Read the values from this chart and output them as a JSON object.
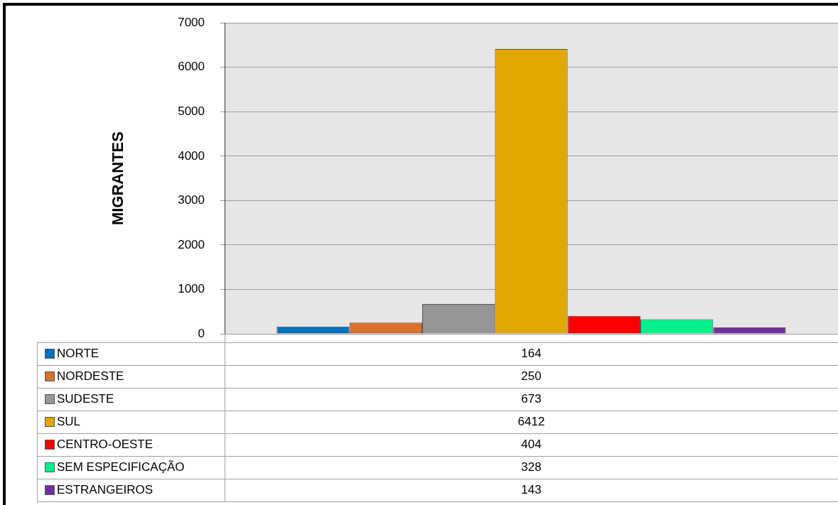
{
  "chart_data": {
    "type": "bar",
    "ylabel": "MIGRANTES",
    "categories": [
      null
    ],
    "series": [
      {
        "name": "NORTE",
        "color": "#0070c0",
        "values": [
          164
        ]
      },
      {
        "name": "NORDESTE",
        "color": "#d9702e",
        "values": [
          250
        ]
      },
      {
        "name": "SUDESTE",
        "color": "#969696",
        "values": [
          673
        ]
      },
      {
        "name": "SUL",
        "color": "#e0a800",
        "values": [
          6412
        ]
      },
      {
        "name": "CENTRO-OESTE",
        "color": "#ff0000",
        "values": [
          404
        ]
      },
      {
        "name": "SEM ESPECIFICAÇÃO",
        "color": "#00f08c",
        "values": [
          328
        ]
      },
      {
        "name": "ESTRANGEIROS",
        "color": "#7030a0",
        "values": [
          143
        ]
      }
    ],
    "ylim": [
      0,
      7000
    ],
    "yticks": [
      0,
      1000,
      2000,
      3000,
      4000,
      5000,
      6000,
      7000
    ],
    "grid": "y",
    "legend": "bottom",
    "annotations": [
      "164",
      "250",
      "673",
      "6412",
      "404",
      "328",
      "143"
    ]
  }
}
